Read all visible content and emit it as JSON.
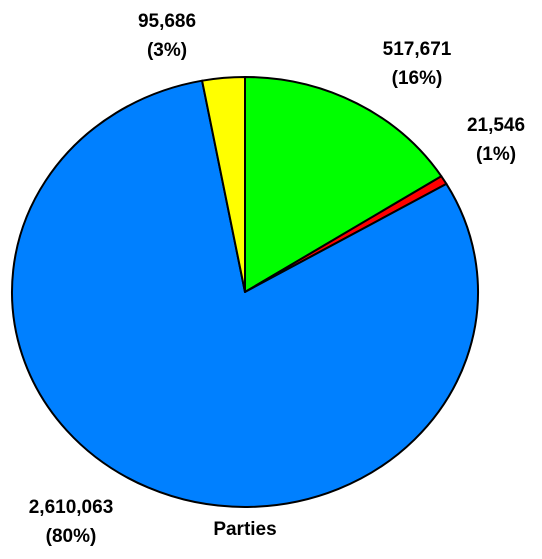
{
  "chart_data": {
    "type": "pie",
    "title": "",
    "category_label": "Parties",
    "slices": [
      {
        "value": 517671,
        "value_label": "517,671",
        "percent_label": "(16%)",
        "color": "#00ff00"
      },
      {
        "value": 21546,
        "value_label": "21,546",
        "percent_label": "(1%)",
        "color": "#ff0000"
      },
      {
        "value": 2610063,
        "value_label": "2,610,063",
        "percent_label": "(80%)",
        "color": "#0080ff"
      },
      {
        "value": 95686,
        "value_label": "95,686",
        "percent_label": "(3%)",
        "color": "#ffff00"
      }
    ],
    "start_angle_deg": 0,
    "direction": "clockwise",
    "legend": "none"
  }
}
